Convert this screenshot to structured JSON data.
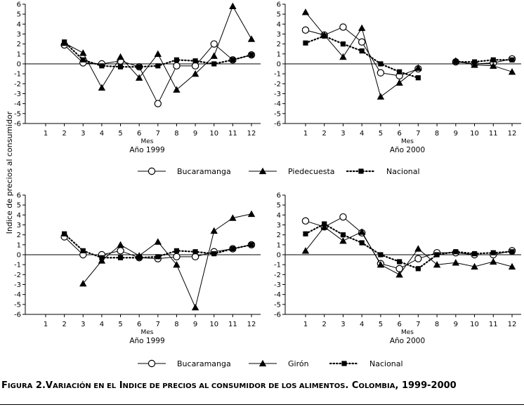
{
  "y_axis_label": "Indice de precios al consumidor",
  "caption_parts": [
    {
      "t": "F",
      "big": true
    },
    {
      "t": "IGURA",
      "big": false
    },
    {
      "t": " 2.",
      "big": true
    },
    {
      "t": "V",
      "big": true
    },
    {
      "t": "ARIACIÓN EN EL",
      "big": false
    },
    {
      "t": " I",
      "big": true
    },
    {
      "t": "NDICE DE PRECIOS AL CONSUMIDOR DE LOS ALIMENTOS",
      "big": false
    },
    {
      "t": ". C",
      "big": true
    },
    {
      "t": "OLOMBIA",
      "big": false
    },
    {
      "t": ", 1999-2000",
      "big": true
    }
  ],
  "legends": [
    {
      "entries": [
        "Bucaramanga",
        "Piedecuesta",
        "Nacional"
      ]
    },
    {
      "entries": [
        "Bucaramanga",
        "Girón",
        "Nacional"
      ]
    }
  ],
  "chart_data": [
    {
      "type": "line",
      "xlabel": "Mes",
      "title": "Año 1999",
      "categories": [
        1,
        2,
        3,
        4,
        5,
        6,
        7,
        8,
        9,
        10,
        11,
        12
      ],
      "ylim": [
        -6,
        6
      ],
      "yticks": [
        6,
        5,
        4,
        3,
        2,
        1,
        0,
        -1,
        -2,
        -3,
        -4,
        -5,
        -6
      ],
      "series": [
        {
          "name": "Bucaramanga",
          "marker": "circle",
          "style": "solid",
          "values": [
            null,
            1.9,
            0.1,
            0.0,
            0.3,
            -0.3,
            -4.0,
            -0.2,
            -0.2,
            2.0,
            0.4,
            0.9
          ]
        },
        {
          "name": "Piedecuesta",
          "marker": "triangle",
          "style": "solid",
          "values": [
            null,
            2.1,
            1.1,
            -2.4,
            0.7,
            -1.4,
            1.0,
            -2.6,
            -1.0,
            0.8,
            5.8,
            2.5
          ]
        },
        {
          "name": "Nacional",
          "marker": "square",
          "style": "dotted",
          "values": [
            null,
            2.2,
            0.4,
            -0.2,
            -0.3,
            -0.3,
            -0.2,
            0.4,
            0.3,
            0.0,
            0.4,
            0.9
          ]
        }
      ]
    },
    {
      "type": "line",
      "xlabel": "Mes",
      "title": "Año 2000",
      "categories": [
        1,
        2,
        3,
        4,
        5,
        6,
        7,
        8,
        9,
        10,
        11,
        12
      ],
      "ylim": [
        -6,
        6
      ],
      "yticks": [
        6,
        5,
        4,
        3,
        2,
        1,
        0,
        -1,
        -2,
        -3,
        -4,
        -5,
        -6
      ],
      "series": [
        {
          "name": "Bucaramanga",
          "marker": "circle",
          "style": "solid",
          "values": [
            3.4,
            2.9,
            3.7,
            2.2,
            -0.9,
            -1.2,
            -0.5,
            null,
            0.2,
            0.0,
            0.1,
            0.5
          ]
        },
        {
          "name": "Piedecuesta",
          "marker": "triangle",
          "style": "solid",
          "values": [
            5.2,
            2.9,
            0.7,
            3.6,
            -3.3,
            -1.9,
            -0.4,
            null,
            0.3,
            -0.1,
            -0.2,
            -0.8
          ]
        },
        {
          "name": "Nacional",
          "marker": "square",
          "style": "dotted",
          "values": [
            2.1,
            2.8,
            2.0,
            1.3,
            0.0,
            -0.8,
            -1.4,
            null,
            0.2,
            0.2,
            0.4,
            0.4
          ]
        }
      ]
    },
    {
      "type": "line",
      "xlabel": "Mes",
      "title": "Año 1999",
      "categories": [
        1,
        2,
        3,
        4,
        5,
        6,
        7,
        8,
        9,
        10,
        11,
        12
      ],
      "ylim": [
        -6,
        6
      ],
      "yticks": [
        6,
        5,
        4,
        3,
        2,
        1,
        0,
        -1,
        -2,
        -3,
        -4,
        -5,
        -6
      ],
      "series": [
        {
          "name": "Bucaramanga",
          "marker": "circle",
          "style": "solid",
          "values": [
            null,
            1.8,
            0.0,
            0.0,
            0.4,
            -0.3,
            -0.4,
            -0.2,
            -0.2,
            0.3,
            0.6,
            1.0
          ]
        },
        {
          "name": "Girón",
          "marker": "triangle",
          "style": "solid",
          "values": [
            null,
            null,
            -2.9,
            -0.6,
            1.0,
            -0.1,
            1.3,
            -1.0,
            -5.3,
            2.4,
            3.7,
            4.1
          ]
        },
        {
          "name": "Nacional",
          "marker": "square",
          "style": "dotted",
          "values": [
            null,
            2.1,
            0.4,
            -0.3,
            -0.3,
            -0.3,
            -0.2,
            0.4,
            0.3,
            0.1,
            0.6,
            1.0
          ]
        }
      ]
    },
    {
      "type": "line",
      "xlabel": "Mes",
      "title": "Año 2000",
      "categories": [
        1,
        2,
        3,
        4,
        5,
        6,
        7,
        8,
        9,
        10,
        11,
        12
      ],
      "ylim": [
        -6,
        6
      ],
      "yticks": [
        6,
        5,
        4,
        3,
        2,
        1,
        0,
        -1,
        -2,
        -3,
        -4,
        -5,
        -6
      ],
      "series": [
        {
          "name": "Bucaramanga",
          "marker": "circle",
          "style": "solid",
          "values": [
            3.4,
            2.8,
            3.8,
            2.2,
            -0.9,
            -1.4,
            -0.4,
            0.2,
            0.2,
            0.0,
            0.0,
            0.4
          ]
        },
        {
          "name": "Girón",
          "marker": "triangle",
          "style": "solid",
          "values": [
            0.4,
            2.8,
            1.4,
            2.3,
            -1.0,
            -2.0,
            0.6,
            -1.0,
            -0.8,
            -1.2,
            -0.7,
            -1.2
          ]
        },
        {
          "name": "Nacional",
          "marker": "square",
          "style": "dotted",
          "values": [
            2.1,
            3.1,
            2.0,
            1.2,
            0.0,
            -0.7,
            -1.4,
            0.0,
            0.3,
            0.1,
            0.2,
            0.3
          ]
        }
      ]
    }
  ]
}
